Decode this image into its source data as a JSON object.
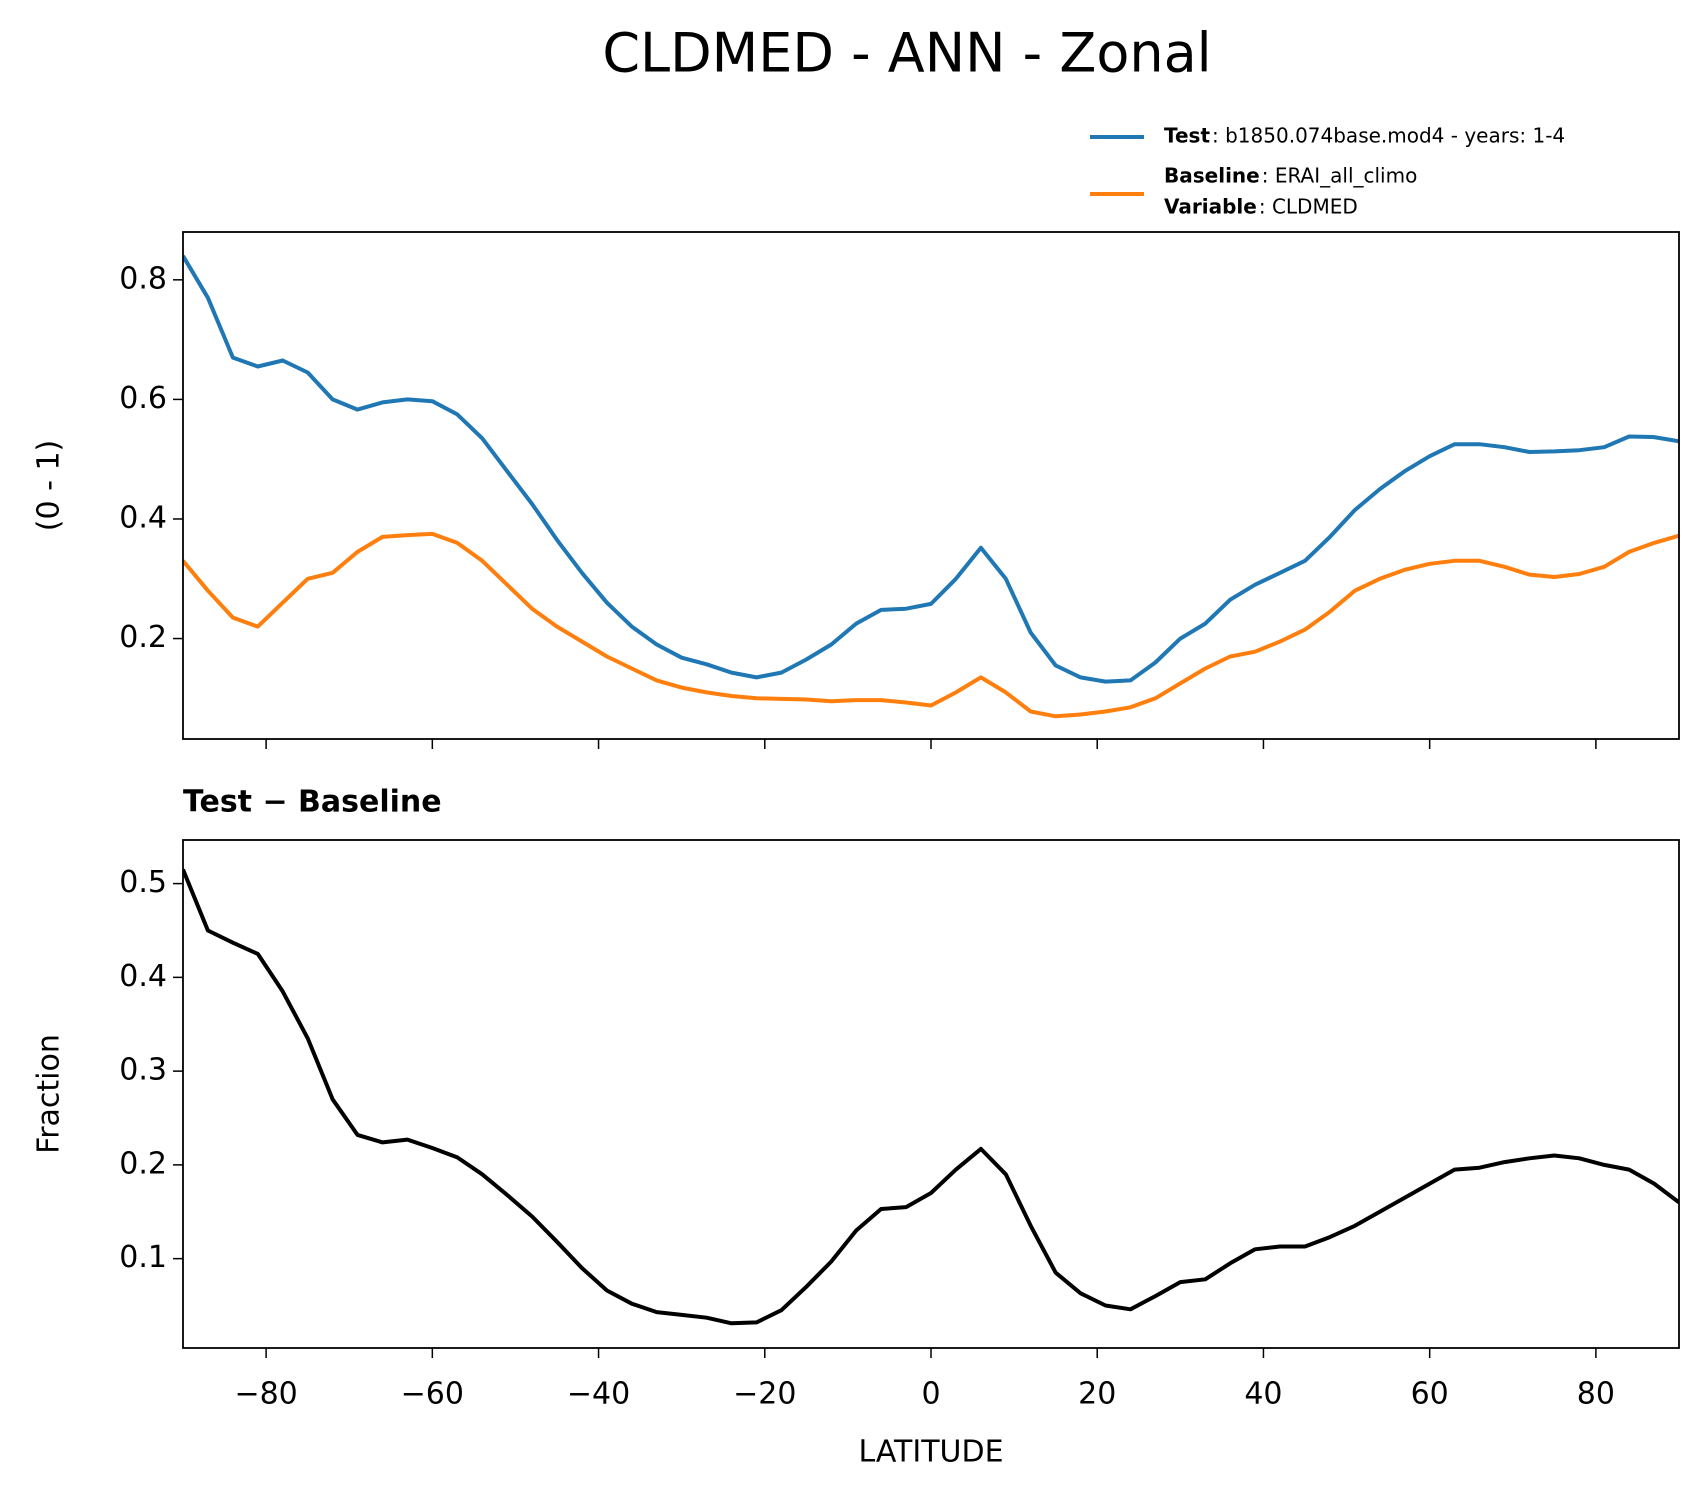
{
  "title": "CLDMED - ANN - Zonal",
  "chart_data": [
    {
      "type": "line",
      "ylabel": "(0 - 1)",
      "x": [
        -90,
        -87,
        -84,
        -81,
        -78,
        -75,
        -72,
        -69,
        -66,
        -63,
        -60,
        -57,
        -54,
        -51,
        -48,
        -45,
        -42,
        -39,
        -36,
        -33,
        -30,
        -27,
        -24,
        -21,
        -18,
        -15,
        -12,
        -9,
        -6,
        -3,
        0,
        3,
        6,
        9,
        12,
        15,
        18,
        21,
        24,
        27,
        30,
        33,
        36,
        39,
        42,
        45,
        48,
        51,
        54,
        57,
        60,
        63,
        66,
        69,
        72,
        75,
        78,
        81,
        84,
        87,
        90
      ],
      "series": [
        {
          "name": "Test",
          "label": ": b1850.074base.mod4 - years: 1-4",
          "color": "#1f77b4",
          "values": [
            0.84,
            0.77,
            0.67,
            0.655,
            0.665,
            0.645,
            0.6,
            0.583,
            0.595,
            0.6,
            0.597,
            0.575,
            0.535,
            0.48,
            0.425,
            0.365,
            0.31,
            0.26,
            0.22,
            0.19,
            0.168,
            0.157,
            0.143,
            0.135,
            0.143,
            0.165,
            0.19,
            0.225,
            0.248,
            0.25,
            0.258,
            0.3,
            0.352,
            0.3,
            0.21,
            0.155,
            0.135,
            0.128,
            0.13,
            0.16,
            0.2,
            0.225,
            0.265,
            0.29,
            0.31,
            0.33,
            0.37,
            0.415,
            0.45,
            0.48,
            0.505,
            0.525,
            0.525,
            0.52,
            0.512,
            0.513,
            0.515,
            0.52,
            0.538,
            0.537,
            0.53
          ]
        },
        {
          "name": "Baseline",
          "label": ": ERAI_all_climo",
          "color": "#ff7f0e",
          "values": [
            0.33,
            0.28,
            0.235,
            0.22,
            0.26,
            0.3,
            0.31,
            0.345,
            0.37,
            0.373,
            0.375,
            0.36,
            0.33,
            0.29,
            0.25,
            0.22,
            0.195,
            0.17,
            0.15,
            0.13,
            0.118,
            0.11,
            0.104,
            0.1,
            0.099,
            0.098,
            0.095,
            0.097,
            0.097,
            0.093,
            0.088,
            0.11,
            0.135,
            0.11,
            0.078,
            0.07,
            0.073,
            0.078,
            0.085,
            0.1,
            0.125,
            0.15,
            0.17,
            0.178,
            0.195,
            0.215,
            0.245,
            0.28,
            0.3,
            0.315,
            0.325,
            0.33,
            0.33,
            0.32,
            0.307,
            0.303,
            0.308,
            0.32,
            0.345,
            0.36,
            0.372
          ]
        }
      ],
      "legend_extra": {
        "name": "Variable",
        "label": ": CLDMED"
      },
      "xlim": [
        -90,
        90
      ],
      "ylim": [
        0.032,
        0.88
      ],
      "yticks": [
        0.2,
        0.4,
        0.6,
        0.8
      ]
    },
    {
      "type": "line",
      "title": "Test − Baseline",
      "xlabel": "LATITUDE",
      "ylabel": "Fraction",
      "color": "#000000",
      "x": [
        -90,
        -87,
        -84,
        -81,
        -78,
        -75,
        -72,
        -69,
        -66,
        -63,
        -60,
        -57,
        -54,
        -51,
        -48,
        -45,
        -42,
        -39,
        -36,
        -33,
        -30,
        -27,
        -24,
        -21,
        -18,
        -15,
        -12,
        -9,
        -6,
        -3,
        0,
        3,
        6,
        9,
        12,
        15,
        18,
        21,
        24,
        27,
        30,
        33,
        36,
        39,
        42,
        45,
        48,
        51,
        54,
        57,
        60,
        63,
        66,
        69,
        72,
        75,
        78,
        81,
        84,
        87,
        90
      ],
      "values": [
        0.515,
        0.45,
        0.437,
        0.425,
        0.385,
        0.335,
        0.27,
        0.232,
        0.224,
        0.227,
        0.218,
        0.208,
        0.19,
        0.168,
        0.145,
        0.118,
        0.09,
        0.066,
        0.052,
        0.043,
        0.04,
        0.037,
        0.031,
        0.032,
        0.045,
        0.07,
        0.097,
        0.13,
        0.153,
        0.155,
        0.17,
        0.195,
        0.217,
        0.19,
        0.135,
        0.085,
        0.063,
        0.05,
        0.046,
        0.06,
        0.075,
        0.078,
        0.095,
        0.11,
        0.113,
        0.113,
        0.123,
        0.135,
        0.15,
        0.165,
        0.18,
        0.195,
        0.197,
        0.203,
        0.207,
        0.21,
        0.207,
        0.2,
        0.195,
        0.18,
        0.16
      ],
      "xlim": [
        -90,
        90
      ],
      "ylim": [
        0.0047,
        0.5465
      ],
      "yticks": [
        0.1,
        0.2,
        0.3,
        0.4,
        0.5
      ],
      "xticks": [
        {
          "value": -80,
          "label": "−80"
        },
        {
          "value": -60,
          "label": "−60"
        },
        {
          "value": -40,
          "label": "−40"
        },
        {
          "value": -20,
          "label": "−20"
        },
        0,
        20,
        40,
        60,
        80
      ]
    }
  ]
}
